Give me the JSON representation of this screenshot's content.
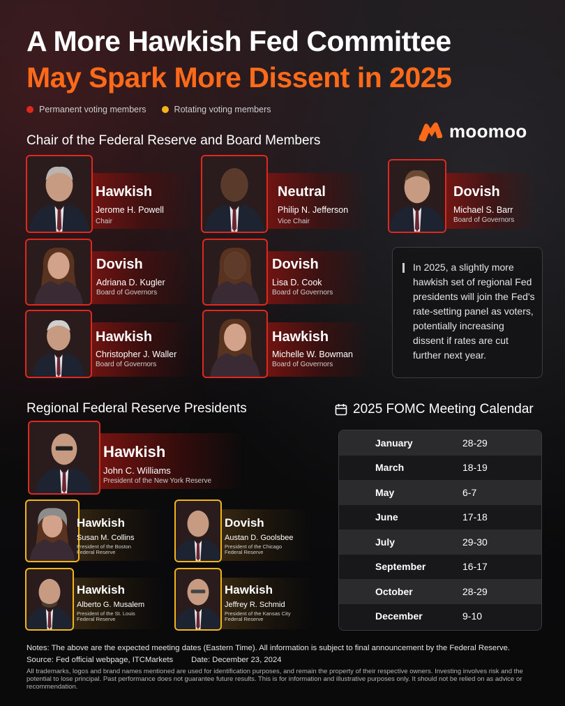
{
  "title_line1": "A More Hawkish Fed Committee",
  "title_line2": "May Spark More Dissent in 2025",
  "legend": {
    "permanent": "Permanent voting members",
    "rotating": "Rotating voting members",
    "permanent_color": "#e0281e",
    "rotating_color": "#f2b51a"
  },
  "section_board": "Chair of the Federal Reserve and Board Members",
  "section_regional": "Regional Federal Reserve Presidents",
  "logo_text": "moomoo",
  "board": [
    {
      "lean": "Hawkish",
      "name": "Jerome H. Powell",
      "role": "Chair"
    },
    {
      "lean": "Neutral",
      "name": "Philip N. Jefferson",
      "role": "Vice Chair"
    },
    {
      "lean": "Dovish",
      "name": "Michael S. Barr",
      "role": "Board of Governors"
    },
    {
      "lean": "Dovish",
      "name": "Adriana D. Kugler",
      "role": "Board of Governors"
    },
    {
      "lean": "Dovish",
      "name": "Lisa D. Cook",
      "role": "Board of Governors"
    },
    {
      "lean": "Hawkish",
      "name": "Christopher J. Waller",
      "role": "Board of Governors"
    },
    {
      "lean": "Hawkish",
      "name": "Michelle W. Bowman",
      "role": "Board of Governors"
    }
  ],
  "regional": [
    {
      "lean": "Hawkish",
      "name": "John C. Williams",
      "role": "President of the New York Reserve"
    },
    {
      "lean": "Hawkish",
      "name": "Susan M. Collins",
      "role": "President of the Boston Federal Reserve"
    },
    {
      "lean": "Dovish",
      "name": "Austan D. Goolsbee",
      "role": "President of the Chicago Federal Reserve"
    },
    {
      "lean": "Hawkish",
      "name": "Alberto G. Musalem",
      "role": "President of the St. Louis Federal Reserve"
    },
    {
      "lean": "Hawkish",
      "name": "Jeffrey R. Schmid",
      "role": "President of the Kansas City Federal Reserve"
    }
  ],
  "quote": "In 2025, a slightly more hawkish set of regional Fed presidents will join the Fed's rate-setting panel as voters, potentially increasing dissent if rates are cut further next year.",
  "calendar_title": "2025 FOMC Meeting Calendar",
  "calendar": [
    {
      "month": "January",
      "dates": "28-29"
    },
    {
      "month": "March",
      "dates": "18-19"
    },
    {
      "month": "May",
      "dates": "6-7"
    },
    {
      "month": "June",
      "dates": "17-18"
    },
    {
      "month": "July",
      "dates": "29-30"
    },
    {
      "month": "September",
      "dates": "16-17"
    },
    {
      "month": "October",
      "dates": "28-29"
    },
    {
      "month": "December",
      "dates": "9-10"
    }
  ],
  "notes": "Notes: The above are the expected meeting dates (Eastern Time). All information is subject to final announcement by the Federal Reserve.",
  "source": "Source: Fed official webpage, ITCMarkets",
  "date": "Date: December 23, 2024",
  "disclaimer": "All trademarks, logos and brand names mentioned are used for identification purposes, and remain the property of their respective owners. Investing involves risk and the potential to lose principal. Past performance does not guarantee future results. This is for information and illustrative purposes only. It should not be relied on as advice or recommendation."
}
